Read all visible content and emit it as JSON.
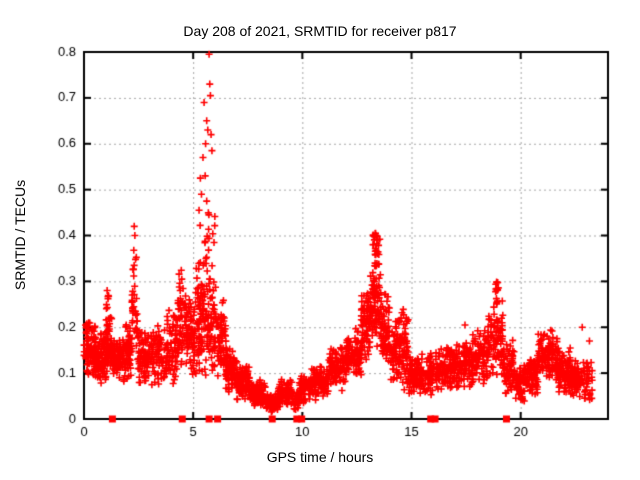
{
  "title": "Day 208 of 2021, SRMTID for receiver p817",
  "colors": {
    "marker": "#ff0000",
    "grid": "#a8a8a8",
    "axis": "#000000",
    "background": "#ffffff"
  },
  "chart_data": {
    "type": "scatter",
    "title": "Day 208 of 2021, SRMTID for receiver p817",
    "xlabel": "GPS time / hours",
    "ylabel": "SRMTID / TECUs",
    "xlim": [
      0,
      24
    ],
    "ylim": [
      0,
      0.8
    ],
    "grid": true,
    "legend": "none",
    "x_ticks": [
      {
        "v": 0,
        "label": "0"
      },
      {
        "v": 5,
        "label": "5"
      },
      {
        "v": 10,
        "label": "10"
      },
      {
        "v": 15,
        "label": "15"
      },
      {
        "v": 20,
        "label": "20"
      }
    ],
    "y_ticks": [
      {
        "v": 0.0,
        "label": "0"
      },
      {
        "v": 0.1,
        "label": "0.1"
      },
      {
        "v": 0.2,
        "label": "0.2"
      },
      {
        "v": 0.3,
        "label": "0.3"
      },
      {
        "v": 0.4,
        "label": "0.4"
      },
      {
        "v": 0.5,
        "label": "0.5"
      },
      {
        "v": 0.6,
        "label": "0.6"
      },
      {
        "v": 0.7,
        "label": "0.7"
      },
      {
        "v": 0.8,
        "label": "0.8"
      }
    ],
    "series": [
      {
        "name": "srmtid",
        "marker": "plus",
        "color": "#ff0000",
        "segments": [
          [
            0.0,
            0.5,
            0.08,
            0.22,
            90,
            "band"
          ],
          [
            0.5,
            1.0,
            0.07,
            0.2,
            90,
            "band"
          ],
          [
            1.0,
            1.3,
            0.08,
            0.24,
            55,
            "band"
          ],
          [
            1.02,
            1.15,
            0.24,
            0.285,
            6,
            "uniform"
          ],
          [
            1.3,
            1.9,
            0.07,
            0.18,
            85,
            "band"
          ],
          [
            1.9,
            2.2,
            0.08,
            0.22,
            55,
            "band"
          ],
          [
            2.2,
            2.45,
            0.14,
            0.31,
            30,
            "band"
          ],
          [
            2.24,
            2.4,
            0.31,
            0.37,
            5,
            "uniform"
          ],
          [
            2.45,
            3.0,
            0.07,
            0.2,
            80,
            "band"
          ],
          [
            3.0,
            3.6,
            0.06,
            0.22,
            70,
            "band"
          ],
          [
            3.6,
            4.3,
            0.07,
            0.25,
            80,
            "band"
          ],
          [
            4.3,
            4.75,
            0.1,
            0.3,
            65,
            "band"
          ],
          [
            4.35,
            4.6,
            0.28,
            0.33,
            6,
            "uniform"
          ],
          [
            4.75,
            5.1,
            0.09,
            0.28,
            50,
            "band"
          ],
          [
            5.1,
            6.05,
            0.08,
            0.35,
            150,
            "band"
          ],
          [
            5.2,
            6.0,
            0.33,
            0.45,
            18,
            "uniform"
          ],
          [
            6.05,
            6.5,
            0.08,
            0.26,
            65,
            "band"
          ],
          [
            6.5,
            7.0,
            0.05,
            0.16,
            80,
            "band"
          ],
          [
            7.0,
            7.6,
            0.035,
            0.12,
            95,
            "band"
          ],
          [
            7.6,
            8.3,
            0.02,
            0.09,
            95,
            "band"
          ],
          [
            8.3,
            8.9,
            0.008,
            0.06,
            70,
            "band"
          ],
          [
            8.9,
            9.6,
            0.025,
            0.09,
            80,
            "band"
          ],
          [
            9.6,
            9.85,
            0.02,
            0.06,
            20,
            "uniform"
          ],
          [
            9.85,
            10.15,
            0.03,
            0.1,
            45,
            "band"
          ],
          [
            10.15,
            10.4,
            0.04,
            0.09,
            18,
            "uniform"
          ],
          [
            10.4,
            11.2,
            0.04,
            0.12,
            100,
            "band"
          ],
          [
            11.2,
            12.0,
            0.06,
            0.16,
            100,
            "band"
          ],
          [
            12.0,
            12.7,
            0.08,
            0.2,
            90,
            "band"
          ],
          [
            12.7,
            13.1,
            0.1,
            0.28,
            70,
            "band"
          ],
          [
            13.1,
            13.6,
            0.15,
            0.34,
            80,
            "band"
          ],
          [
            13.2,
            13.55,
            0.33,
            0.405,
            28,
            "uniform"
          ],
          [
            13.6,
            14.0,
            0.1,
            0.28,
            60,
            "band"
          ],
          [
            14.0,
            14.5,
            0.08,
            0.22,
            70,
            "band"
          ],
          [
            14.5,
            14.85,
            0.05,
            0.25,
            50,
            "band"
          ],
          [
            14.85,
            15.3,
            0.05,
            0.15,
            60,
            "band"
          ],
          [
            15.3,
            16.0,
            0.05,
            0.15,
            80,
            "band"
          ],
          [
            16.0,
            17.0,
            0.06,
            0.17,
            110,
            "band"
          ],
          [
            17.0,
            17.8,
            0.06,
            0.18,
            100,
            "band"
          ],
          [
            17.8,
            18.5,
            0.07,
            0.2,
            80,
            "band"
          ],
          [
            18.5,
            19.2,
            0.08,
            0.26,
            85,
            "band"
          ],
          [
            18.85,
            19.15,
            0.25,
            0.3,
            14,
            "uniform"
          ],
          [
            19.2,
            19.7,
            0.05,
            0.18,
            60,
            "band"
          ],
          [
            19.7,
            20.3,
            0.03,
            0.13,
            70,
            "band"
          ],
          [
            20.3,
            20.8,
            0.05,
            0.15,
            70,
            "band"
          ],
          [
            20.8,
            21.7,
            0.08,
            0.205,
            110,
            "band"
          ],
          [
            21.7,
            22.3,
            0.05,
            0.16,
            90,
            "band"
          ],
          [
            22.3,
            22.8,
            0.04,
            0.13,
            70,
            "band"
          ],
          [
            22.8,
            23.3,
            0.03,
            0.14,
            38,
            "band"
          ]
        ],
        "outliers": [
          [
            5.73,
            0.795
          ],
          [
            5.76,
            0.73
          ],
          [
            5.79,
            0.705
          ],
          [
            5.5,
            0.69
          ],
          [
            5.62,
            0.65
          ],
          [
            5.67,
            0.63
          ],
          [
            5.82,
            0.62
          ],
          [
            5.57,
            0.6
          ],
          [
            5.86,
            0.585
          ],
          [
            5.45,
            0.57
          ],
          [
            5.55,
            0.53
          ],
          [
            5.33,
            0.525
          ],
          [
            5.38,
            0.49
          ],
          [
            5.62,
            0.475
          ],
          [
            5.27,
            0.455
          ],
          [
            5.72,
            0.445
          ],
          [
            2.3,
            0.42
          ],
          [
            2.33,
            0.4
          ],
          [
            2.28,
            0.368
          ],
          [
            2.36,
            0.348
          ],
          [
            13.35,
            0.405
          ],
          [
            13.42,
            0.398
          ],
          [
            1.06,
            0.28
          ],
          [
            1.1,
            0.262
          ],
          [
            17.45,
            0.205
          ],
          [
            22.82,
            0.2
          ],
          [
            23.15,
            0.17
          ]
        ]
      },
      {
        "name": "flags",
        "marker": "filled-square",
        "color": "#ff0000",
        "y": 0,
        "x": [
          1.3,
          4.5,
          5.73,
          6.12,
          8.62,
          9.75,
          9.97,
          15.88,
          16.08,
          19.35
        ]
      }
    ]
  }
}
